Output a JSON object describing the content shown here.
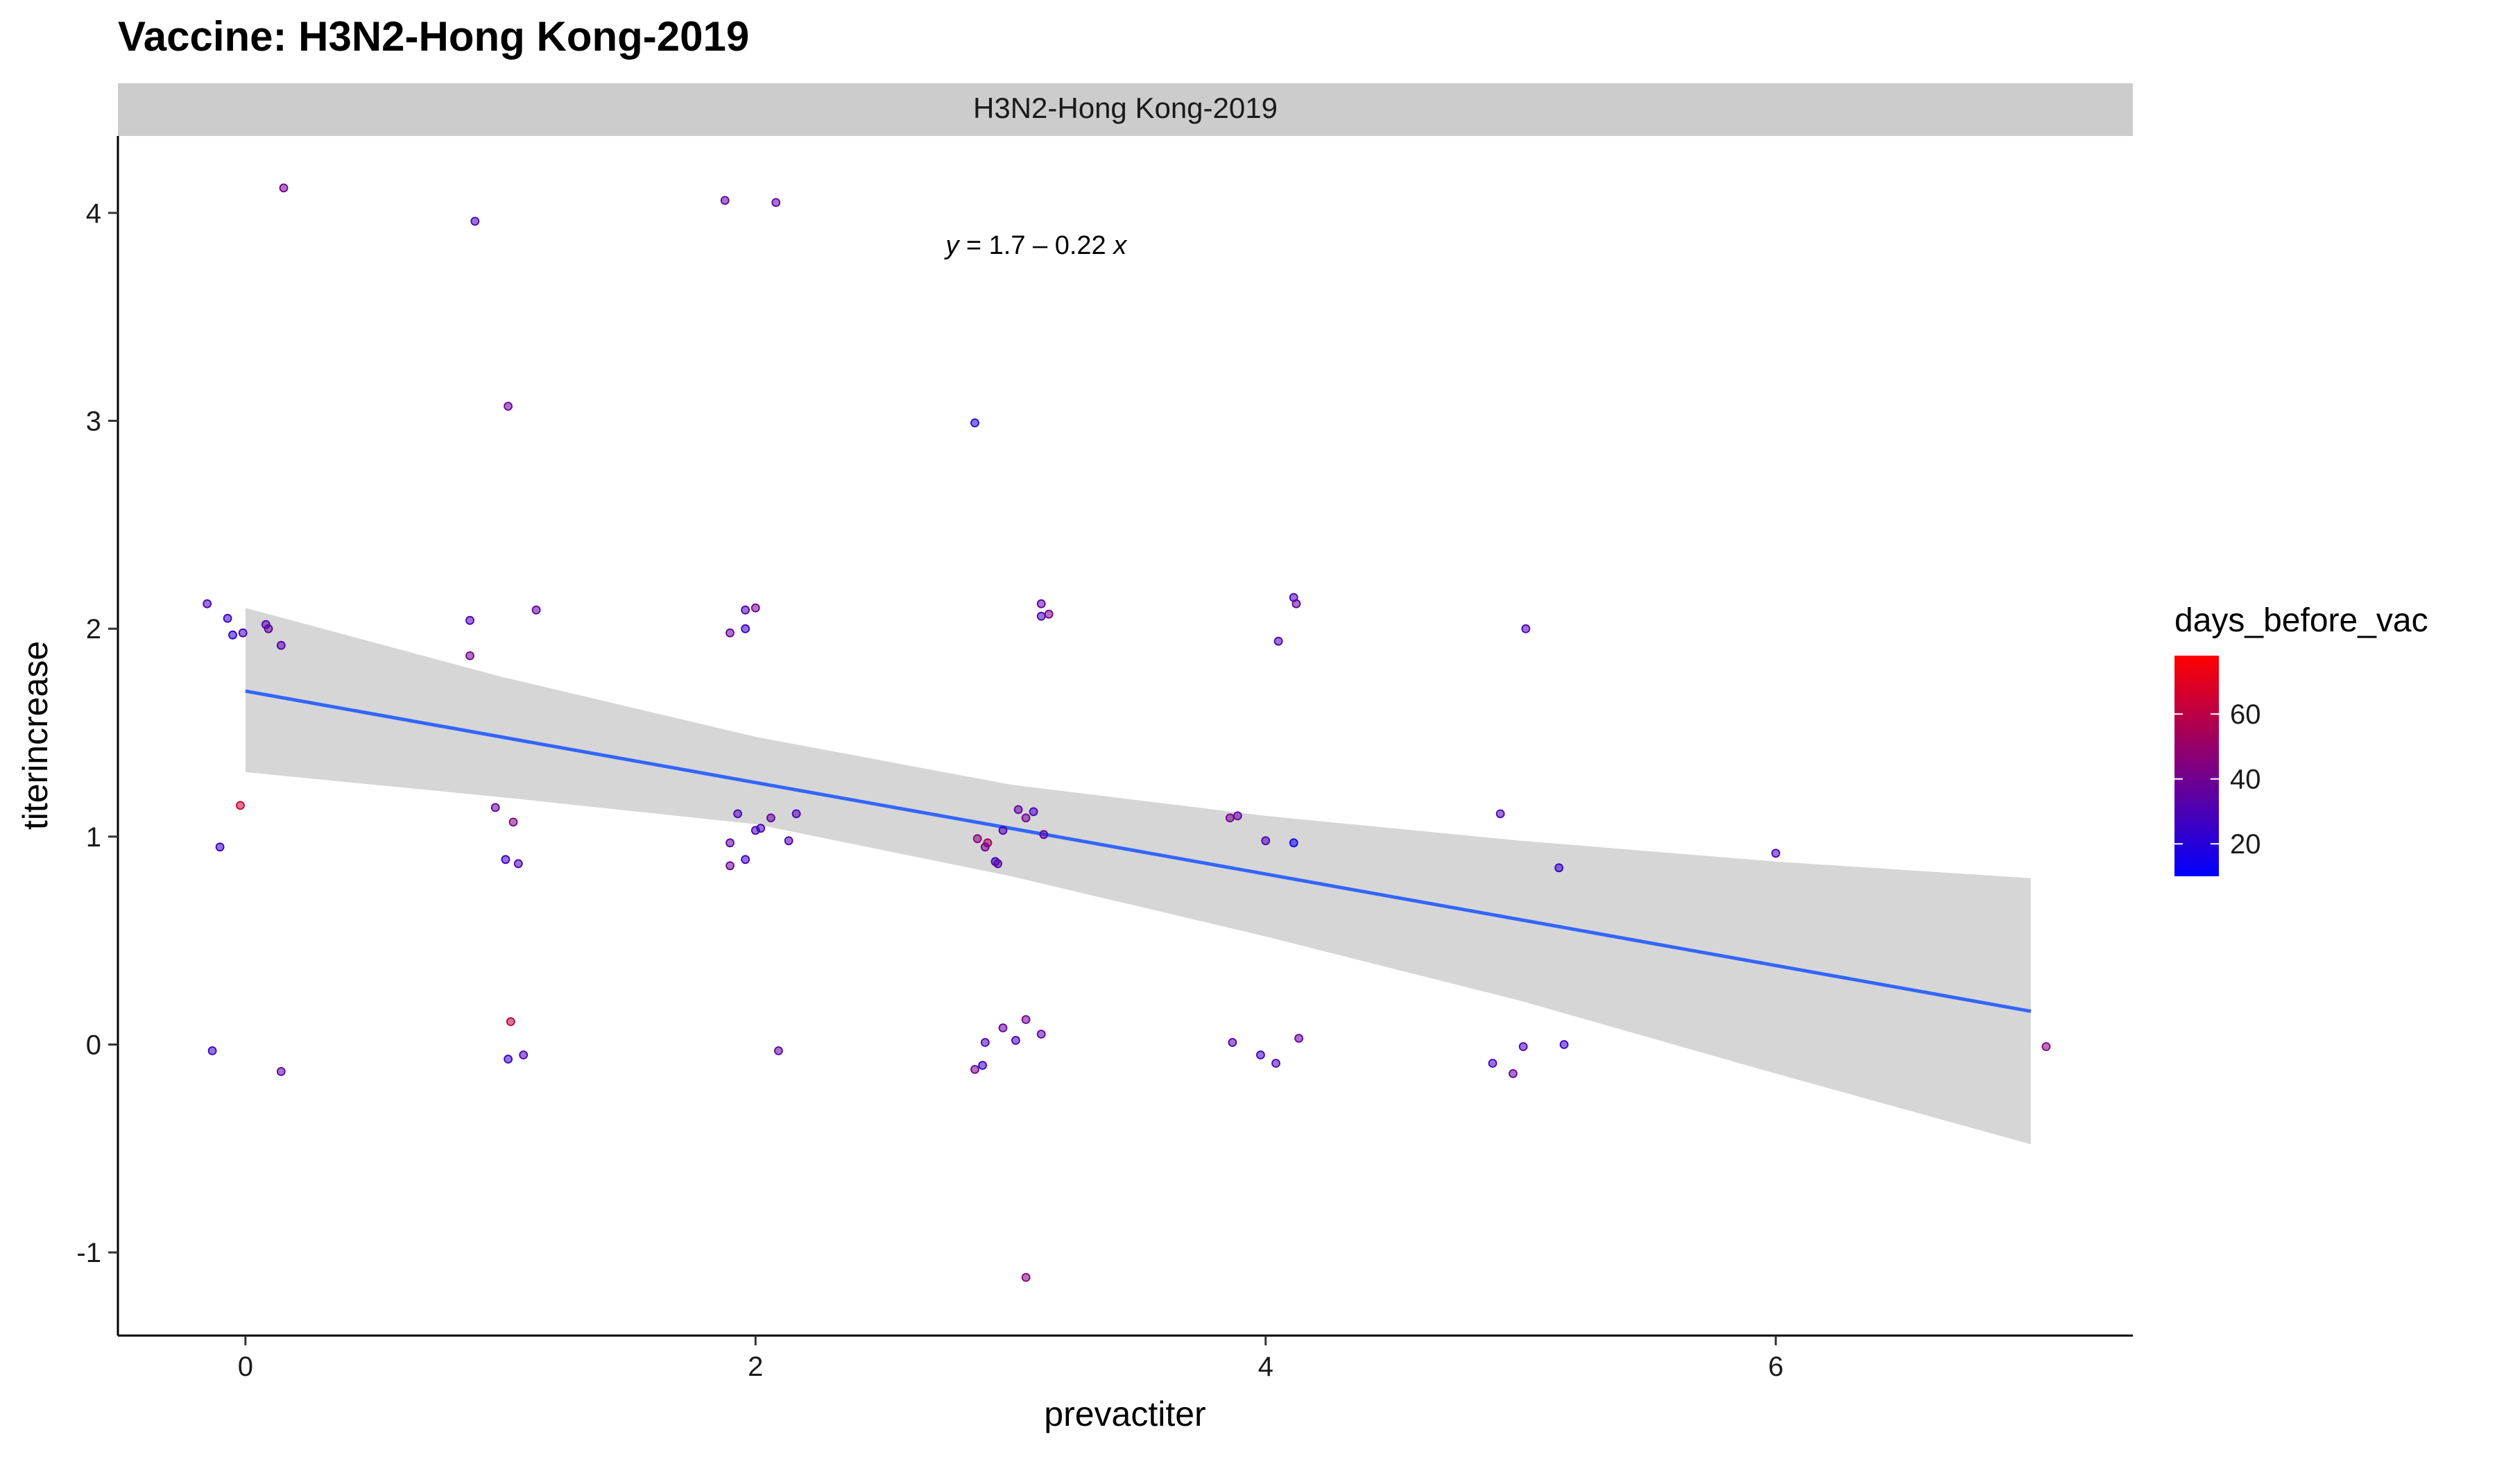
{
  "chart_data": {
    "type": "scatter",
    "title": "Vaccine: H3N2-Hong Kong-2019",
    "facet_label": "H3N2-Hong Kong-2019",
    "xlabel": "prevactiter",
    "ylabel": "titerincrease",
    "xlim": [
      -0.5,
      7.4
    ],
    "ylim": [
      -1.4,
      4.37
    ],
    "x_ticks": [
      0,
      2,
      4,
      6
    ],
    "y_ticks": [
      -1,
      0,
      1,
      2,
      3,
      4
    ],
    "grid": false,
    "annotation": {
      "italic_y": "y",
      "text": " = 1.7 – 0.22 ",
      "italic_x": "x",
      "at": [
        3.1,
        3.85
      ]
    },
    "regression": {
      "intercept": 1.7,
      "slope": -0.22,
      "x_range": [
        0,
        7
      ],
      "color": "#3366ff",
      "ci": [
        {
          "x": 0,
          "lo": 1.31,
          "hi": 2.1
        },
        {
          "x": 1,
          "lo": 1.19,
          "hi": 1.77
        },
        {
          "x": 2,
          "lo": 1.06,
          "hi": 1.48
        },
        {
          "x": 3,
          "lo": 0.81,
          "hi": 1.25
        },
        {
          "x": 4,
          "lo": 0.52,
          "hi": 1.1
        },
        {
          "x": 5,
          "lo": 0.21,
          "hi": 0.98
        },
        {
          "x": 6,
          "lo": -0.14,
          "hi": 0.88
        },
        {
          "x": 7,
          "lo": -0.48,
          "hi": 0.8
        }
      ]
    },
    "color_legend": {
      "title": "days_before_vac",
      "low_color": "#0000ff",
      "high_color": "#ff0000",
      "min": 10,
      "max": 78,
      "ticks": [
        20,
        40,
        60
      ]
    },
    "points": [
      {
        "x": -0.15,
        "y": 2.12,
        "c": 30
      },
      {
        "x": -0.07,
        "y": 2.05,
        "c": 25
      },
      {
        "x": -0.05,
        "y": 1.97,
        "c": 22
      },
      {
        "x": -0.01,
        "y": 1.98,
        "c": 28
      },
      {
        "x": 0.08,
        "y": 2.02,
        "c": 30
      },
      {
        "x": 0.09,
        "y": 2.0,
        "c": 35
      },
      {
        "x": 0.14,
        "y": 1.92,
        "c": 32
      },
      {
        "x": -0.1,
        "y": 0.95,
        "c": 25
      },
      {
        "x": -0.02,
        "y": 1.15,
        "c": 65
      },
      {
        "x": -0.13,
        "y": -0.03,
        "c": 25
      },
      {
        "x": 0.14,
        "y": -0.13,
        "c": 35
      },
      {
        "x": 0.15,
        "y": 4.12,
        "c": 40
      },
      {
        "x": 0.9,
        "y": 3.96,
        "c": 30
      },
      {
        "x": 1.03,
        "y": 3.07,
        "c": 38
      },
      {
        "x": 0.88,
        "y": 2.04,
        "c": 30
      },
      {
        "x": 1.14,
        "y": 2.09,
        "c": 35
      },
      {
        "x": 0.88,
        "y": 1.87,
        "c": 40
      },
      {
        "x": 0.98,
        "y": 1.14,
        "c": 35
      },
      {
        "x": 1.05,
        "y": 1.07,
        "c": 45
      },
      {
        "x": 1.02,
        "y": 0.89,
        "c": 25
      },
      {
        "x": 1.07,
        "y": 0.87,
        "c": 30
      },
      {
        "x": 1.04,
        "y": 0.11,
        "c": 60
      },
      {
        "x": 1.09,
        "y": -0.05,
        "c": 30
      },
      {
        "x": 1.03,
        "y": -0.07,
        "c": 25
      },
      {
        "x": 1.88,
        "y": 4.06,
        "c": 35
      },
      {
        "x": 2.08,
        "y": 4.05,
        "c": 35
      },
      {
        "x": 1.96,
        "y": 2.09,
        "c": 30
      },
      {
        "x": 2.0,
        "y": 2.1,
        "c": 40
      },
      {
        "x": 1.96,
        "y": 2.0,
        "c": 25
      },
      {
        "x": 1.9,
        "y": 1.98,
        "c": 38
      },
      {
        "x": 1.93,
        "y": 1.11,
        "c": 30
      },
      {
        "x": 2.06,
        "y": 1.09,
        "c": 35
      },
      {
        "x": 2.16,
        "y": 1.11,
        "c": 30
      },
      {
        "x": 2.0,
        "y": 1.03,
        "c": 30
      },
      {
        "x": 2.02,
        "y": 1.04,
        "c": 28
      },
      {
        "x": 2.13,
        "y": 0.98,
        "c": 30
      },
      {
        "x": 1.9,
        "y": 0.97,
        "c": 35
      },
      {
        "x": 1.96,
        "y": 0.89,
        "c": 25
      },
      {
        "x": 1.9,
        "y": 0.86,
        "c": 40
      },
      {
        "x": 2.09,
        "y": -0.03,
        "c": 35
      },
      {
        "x": 2.86,
        "y": 2.99,
        "c": 20
      },
      {
        "x": 3.12,
        "y": 2.12,
        "c": 35
      },
      {
        "x": 3.12,
        "y": 2.06,
        "c": 30
      },
      {
        "x": 3.15,
        "y": 2.07,
        "c": 40
      },
      {
        "x": 3.03,
        "y": 1.13,
        "c": 35
      },
      {
        "x": 3.09,
        "y": 1.12,
        "c": 30
      },
      {
        "x": 3.06,
        "y": 1.09,
        "c": 40
      },
      {
        "x": 2.97,
        "y": 1.03,
        "c": 30
      },
      {
        "x": 3.13,
        "y": 1.01,
        "c": 35
      },
      {
        "x": 2.87,
        "y": 0.99,
        "c": 45
      },
      {
        "x": 2.91,
        "y": 0.97,
        "c": 55
      },
      {
        "x": 2.9,
        "y": 0.95,
        "c": 40
      },
      {
        "x": 2.94,
        "y": 0.88,
        "c": 25
      },
      {
        "x": 2.95,
        "y": 0.87,
        "c": 35
      },
      {
        "x": 2.97,
        "y": 0.08,
        "c": 35
      },
      {
        "x": 3.06,
        "y": 0.12,
        "c": 40
      },
      {
        "x": 3.12,
        "y": 0.05,
        "c": 35
      },
      {
        "x": 3.02,
        "y": 0.02,
        "c": 30
      },
      {
        "x": 2.9,
        "y": 0.01,
        "c": 30
      },
      {
        "x": 2.89,
        "y": -0.1,
        "c": 25
      },
      {
        "x": 2.86,
        "y": -0.12,
        "c": 40
      },
      {
        "x": 3.06,
        "y": -1.12,
        "c": 45
      },
      {
        "x": 4.11,
        "y": 2.15,
        "c": 30
      },
      {
        "x": 4.12,
        "y": 2.12,
        "c": 35
      },
      {
        "x": 4.05,
        "y": 1.94,
        "c": 30
      },
      {
        "x": 3.86,
        "y": 1.09,
        "c": 40
      },
      {
        "x": 3.89,
        "y": 1.1,
        "c": 35
      },
      {
        "x": 4.0,
        "y": 0.98,
        "c": 30
      },
      {
        "x": 4.11,
        "y": 0.97,
        "c": 15
      },
      {
        "x": 3.87,
        "y": 0.01,
        "c": 30
      },
      {
        "x": 3.98,
        "y": -0.05,
        "c": 25
      },
      {
        "x": 4.04,
        "y": -0.09,
        "c": 30
      },
      {
        "x": 4.13,
        "y": 0.03,
        "c": 35
      },
      {
        "x": 5.02,
        "y": 2.0,
        "c": 30
      },
      {
        "x": 4.92,
        "y": 1.11,
        "c": 30
      },
      {
        "x": 5.15,
        "y": 0.85,
        "c": 25
      },
      {
        "x": 5.01,
        "y": -0.01,
        "c": 30
      },
      {
        "x": 5.17,
        "y": 0.0,
        "c": 25
      },
      {
        "x": 4.89,
        "y": -0.09,
        "c": 28
      },
      {
        "x": 4.97,
        "y": -0.14,
        "c": 35
      },
      {
        "x": 6.0,
        "y": 0.92,
        "c": 30
      },
      {
        "x": 7.06,
        "y": -0.01,
        "c": 45
      }
    ]
  }
}
